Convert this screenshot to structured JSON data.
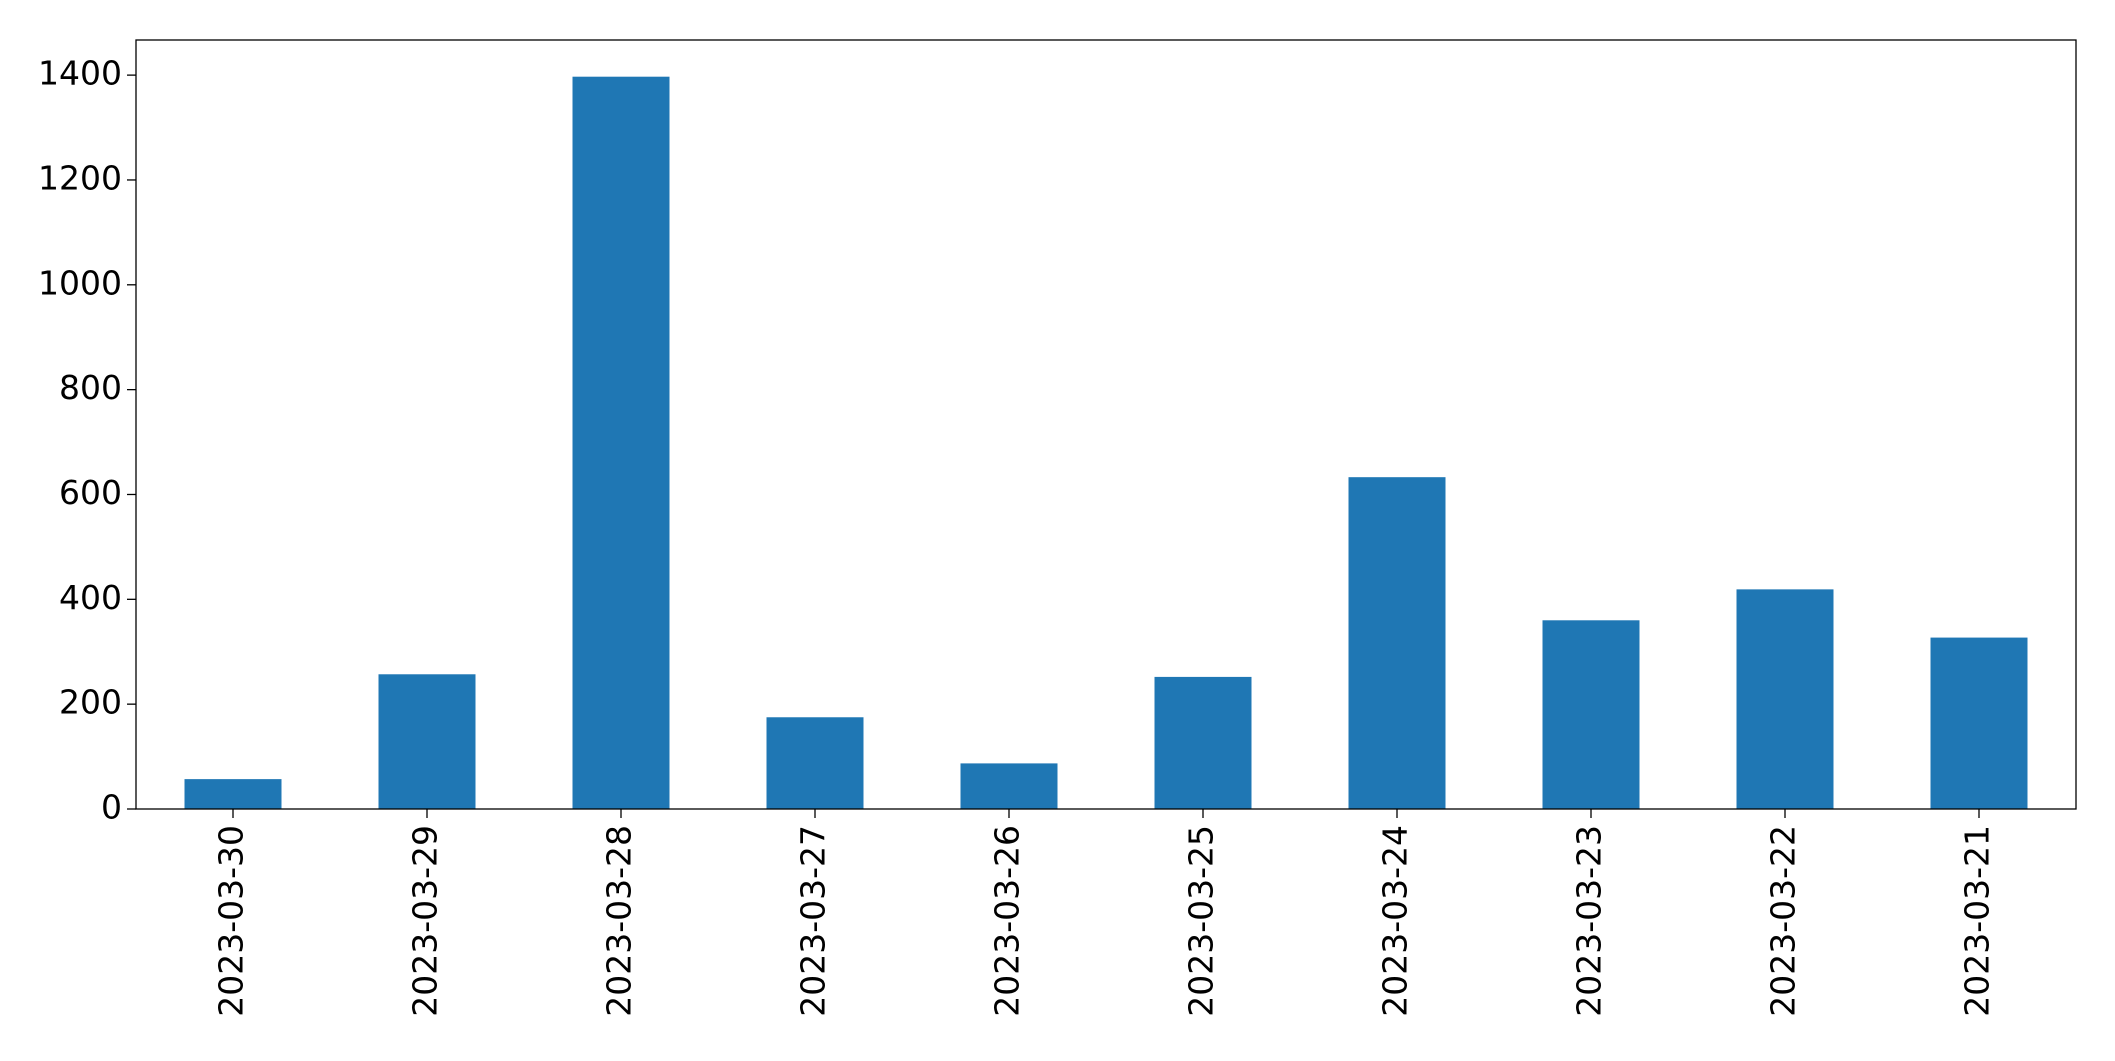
{
  "chart_data": {
    "type": "bar",
    "categories": [
      "2023-03-30",
      "2023-03-29",
      "2023-03-28",
      "2023-03-27",
      "2023-03-26",
      "2023-03-25",
      "2023-03-24",
      "2023-03-23",
      "2023-03-22",
      "2023-03-21"
    ],
    "values": [
      57,
      257,
      1397,
      175,
      87,
      252,
      633,
      360,
      419,
      327
    ],
    "color": "#1f77b4",
    "ylim": [
      0,
      1467
    ],
    "yticks": [
      0,
      200,
      400,
      600,
      800,
      1000,
      1200,
      1400
    ],
    "grid": false
  }
}
